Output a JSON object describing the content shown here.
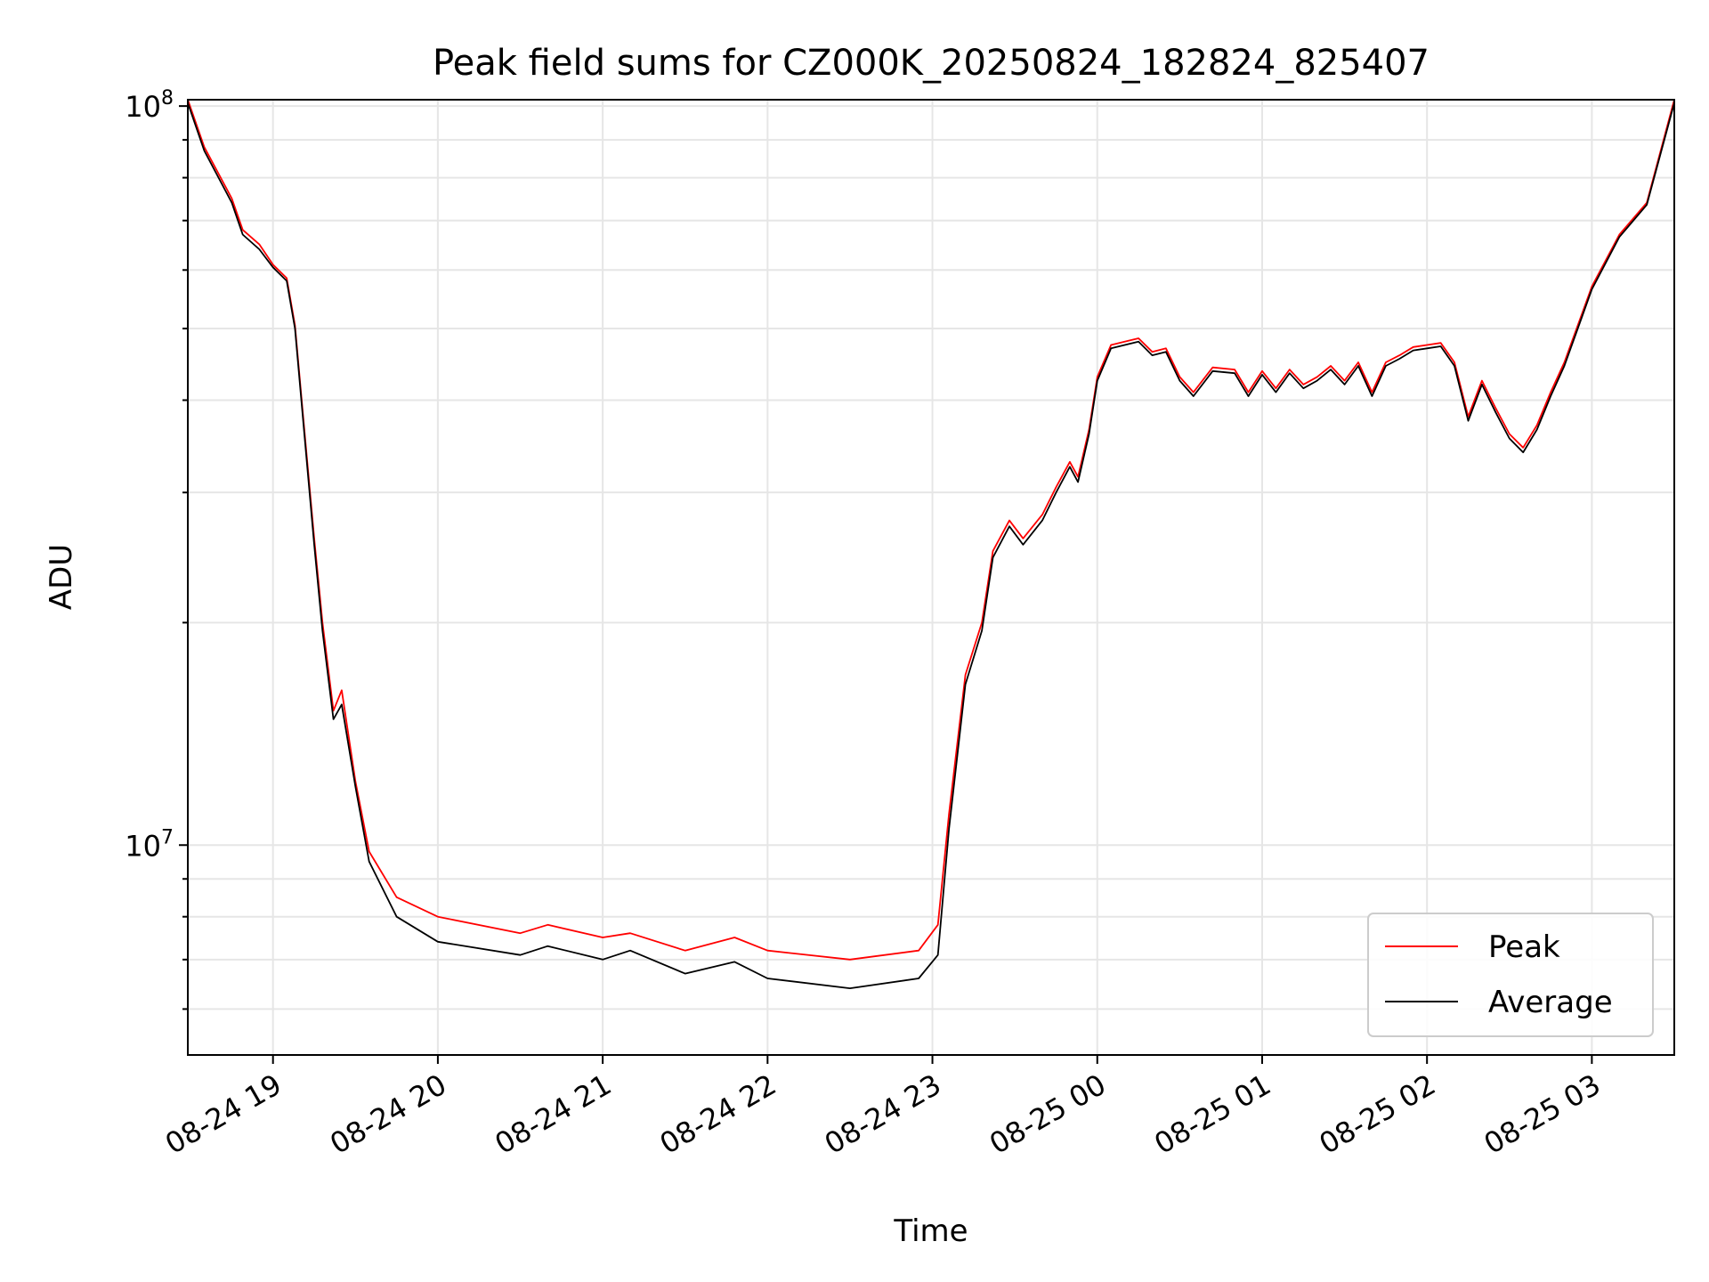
{
  "chart_data": {
    "type": "line",
    "title": "Peak field sums for CZ000K_20250824_182824_825407",
    "xlabel": "Time",
    "ylabel": "ADU",
    "yscale": "log",
    "xlim": [
      "2025-08-24 18:29",
      "2025-08-25 03:30"
    ],
    "ylim": [
      5200000,
      102000000
    ],
    "grid": true,
    "legend_position": "lower right",
    "x_ticks": [
      {
        "t": "2025-08-24 19:00",
        "label": "08-24 19"
      },
      {
        "t": "2025-08-24 20:00",
        "label": "08-24 20"
      },
      {
        "t": "2025-08-24 21:00",
        "label": "08-24 21"
      },
      {
        "t": "2025-08-24 22:00",
        "label": "08-24 22"
      },
      {
        "t": "2025-08-24 23:00",
        "label": "08-24 23"
      },
      {
        "t": "2025-08-25 00:00",
        "label": "08-25 00"
      },
      {
        "t": "2025-08-25 01:00",
        "label": "08-25 01"
      },
      {
        "t": "2025-08-25 02:00",
        "label": "08-25 02"
      },
      {
        "t": "2025-08-25 03:00",
        "label": "08-25 03"
      }
    ],
    "y_ticks": [
      {
        "value": 10000000,
        "label": "10",
        "exp": "7"
      },
      {
        "value": 100000000,
        "label": "10",
        "exp": "8"
      }
    ],
    "series": [
      {
        "name": "Peak",
        "color": "#ff0000",
        "points": [
          [
            "2025-08-24 18:29",
            102000000
          ],
          [
            "2025-08-24 18:35",
            88000000
          ],
          [
            "2025-08-24 18:45",
            75000000
          ],
          [
            "2025-08-24 18:49",
            68000000
          ],
          [
            "2025-08-24 18:55",
            65000000
          ],
          [
            "2025-08-24 19:00",
            61000000
          ],
          [
            "2025-08-24 19:05",
            58500000
          ],
          [
            "2025-08-24 19:08",
            50500000
          ],
          [
            "2025-08-24 19:11",
            38000000
          ],
          [
            "2025-08-24 19:15",
            26000000
          ],
          [
            "2025-08-24 19:18",
            20000000
          ],
          [
            "2025-08-24 19:22",
            15200000
          ],
          [
            "2025-08-24 19:25",
            16200000
          ],
          [
            "2025-08-24 19:30",
            12200000
          ],
          [
            "2025-08-24 19:35",
            9800000
          ],
          [
            "2025-08-24 19:45",
            8500000
          ],
          [
            "2025-08-24 20:00",
            8000000
          ],
          [
            "2025-08-24 20:30",
            7600000
          ],
          [
            "2025-08-24 20:40",
            7800000
          ],
          [
            "2025-08-24 21:00",
            7500000
          ],
          [
            "2025-08-24 21:10",
            7600000
          ],
          [
            "2025-08-24 21:30",
            7200000
          ],
          [
            "2025-08-24 21:48",
            7500000
          ],
          [
            "2025-08-24 22:00",
            7200000
          ],
          [
            "2025-08-24 22:30",
            7000000
          ],
          [
            "2025-08-24 22:55",
            7200000
          ],
          [
            "2025-08-24 23:02",
            7800000
          ],
          [
            "2025-08-24 23:06",
            11000000
          ],
          [
            "2025-08-24 23:12",
            17000000
          ],
          [
            "2025-08-24 23:18",
            20000000
          ],
          [
            "2025-08-24 23:22",
            25000000
          ],
          [
            "2025-08-24 23:28",
            27500000
          ],
          [
            "2025-08-24 23:33",
            26000000
          ],
          [
            "2025-08-24 23:40",
            28000000
          ],
          [
            "2025-08-24 23:45",
            30500000
          ],
          [
            "2025-08-24 23:50",
            33000000
          ],
          [
            "2025-08-24 23:53",
            31500000
          ],
          [
            "2025-08-24 23:57",
            36500000
          ],
          [
            "2025-08-25 00:00",
            43000000
          ],
          [
            "2025-08-25 00:05",
            47500000
          ],
          [
            "2025-08-25 00:15",
            48500000
          ],
          [
            "2025-08-25 00:20",
            46500000
          ],
          [
            "2025-08-25 00:25",
            47000000
          ],
          [
            "2025-08-25 00:30",
            43000000
          ],
          [
            "2025-08-25 00:35",
            41000000
          ],
          [
            "2025-08-25 00:42",
            44300000
          ],
          [
            "2025-08-25 00:50",
            44000000
          ],
          [
            "2025-08-25 00:55",
            41000000
          ],
          [
            "2025-08-25 01:00",
            43800000
          ],
          [
            "2025-08-25 01:05",
            41500000
          ],
          [
            "2025-08-25 01:10",
            44000000
          ],
          [
            "2025-08-25 01:15",
            42000000
          ],
          [
            "2025-08-25 01:20",
            43000000
          ],
          [
            "2025-08-25 01:25",
            44500000
          ],
          [
            "2025-08-25 01:30",
            42500000
          ],
          [
            "2025-08-25 01:35",
            45000000
          ],
          [
            "2025-08-25 01:40",
            41000000
          ],
          [
            "2025-08-25 01:45",
            45000000
          ],
          [
            "2025-08-25 01:50",
            46000000
          ],
          [
            "2025-08-25 01:55",
            47200000
          ],
          [
            "2025-08-25 02:00",
            47500000
          ],
          [
            "2025-08-25 02:05",
            47800000
          ],
          [
            "2025-08-25 02:10",
            45000000
          ],
          [
            "2025-08-25 02:15",
            38000000
          ],
          [
            "2025-08-25 02:20",
            42500000
          ],
          [
            "2025-08-25 02:25",
            39000000
          ],
          [
            "2025-08-25 02:30",
            36000000
          ],
          [
            "2025-08-25 02:35",
            34500000
          ],
          [
            "2025-08-25 02:40",
            37000000
          ],
          [
            "2025-08-25 02:45",
            41000000
          ],
          [
            "2025-08-25 02:50",
            45000000
          ],
          [
            "2025-08-25 03:00",
            57000000
          ],
          [
            "2025-08-25 03:10",
            67000000
          ],
          [
            "2025-08-25 03:20",
            74000000
          ],
          [
            "2025-08-25 03:30",
            102000000
          ]
        ]
      },
      {
        "name": "Average",
        "color": "#000000",
        "points": [
          [
            "2025-08-24 18:29",
            101000000
          ],
          [
            "2025-08-24 18:35",
            87000000
          ],
          [
            "2025-08-24 18:45",
            74000000
          ],
          [
            "2025-08-24 18:49",
            67000000
          ],
          [
            "2025-08-24 18:55",
            64000000
          ],
          [
            "2025-08-24 19:00",
            60500000
          ],
          [
            "2025-08-24 19:05",
            58000000
          ],
          [
            "2025-08-24 19:08",
            50000000
          ],
          [
            "2025-08-24 19:11",
            37500000
          ],
          [
            "2025-08-24 19:15",
            25500000
          ],
          [
            "2025-08-24 19:18",
            19500000
          ],
          [
            "2025-08-24 19:22",
            14800000
          ],
          [
            "2025-08-24 19:25",
            15500000
          ],
          [
            "2025-08-24 19:30",
            12000000
          ],
          [
            "2025-08-24 19:35",
            9500000
          ],
          [
            "2025-08-24 19:45",
            8000000
          ],
          [
            "2025-08-24 20:00",
            7400000
          ],
          [
            "2025-08-24 20:30",
            7100000
          ],
          [
            "2025-08-24 20:40",
            7300000
          ],
          [
            "2025-08-24 21:00",
            7000000
          ],
          [
            "2025-08-24 21:10",
            7200000
          ],
          [
            "2025-08-24 21:30",
            6700000
          ],
          [
            "2025-08-24 21:48",
            6950000
          ],
          [
            "2025-08-24 22:00",
            6600000
          ],
          [
            "2025-08-24 22:30",
            6400000
          ],
          [
            "2025-08-24 22:55",
            6600000
          ],
          [
            "2025-08-24 23:02",
            7100000
          ],
          [
            "2025-08-24 23:06",
            10500000
          ],
          [
            "2025-08-24 23:12",
            16500000
          ],
          [
            "2025-08-24 23:18",
            19500000
          ],
          [
            "2025-08-24 23:22",
            24500000
          ],
          [
            "2025-08-24 23:28",
            27000000
          ],
          [
            "2025-08-24 23:33",
            25500000
          ],
          [
            "2025-08-24 23:40",
            27500000
          ],
          [
            "2025-08-24 23:45",
            30000000
          ],
          [
            "2025-08-24 23:50",
            32500000
          ],
          [
            "2025-08-24 23:53",
            31000000
          ],
          [
            "2025-08-24 23:57",
            36000000
          ],
          [
            "2025-08-25 00:00",
            42500000
          ],
          [
            "2025-08-25 00:05",
            47000000
          ],
          [
            "2025-08-25 00:15",
            48000000
          ],
          [
            "2025-08-25 00:20",
            46000000
          ],
          [
            "2025-08-25 00:25",
            46500000
          ],
          [
            "2025-08-25 00:30",
            42500000
          ],
          [
            "2025-08-25 00:35",
            40500000
          ],
          [
            "2025-08-25 00:42",
            43800000
          ],
          [
            "2025-08-25 00:50",
            43500000
          ],
          [
            "2025-08-25 00:55",
            40500000
          ],
          [
            "2025-08-25 01:00",
            43300000
          ],
          [
            "2025-08-25 01:05",
            41000000
          ],
          [
            "2025-08-25 01:10",
            43500000
          ],
          [
            "2025-08-25 01:15",
            41500000
          ],
          [
            "2025-08-25 01:20",
            42500000
          ],
          [
            "2025-08-25 01:25",
            44000000
          ],
          [
            "2025-08-25 01:30",
            42000000
          ],
          [
            "2025-08-25 01:35",
            44500000
          ],
          [
            "2025-08-25 01:40",
            40500000
          ],
          [
            "2025-08-25 01:45",
            44500000
          ],
          [
            "2025-08-25 01:50",
            45500000
          ],
          [
            "2025-08-25 01:55",
            46700000
          ],
          [
            "2025-08-25 02:00",
            47000000
          ],
          [
            "2025-08-25 02:05",
            47300000
          ],
          [
            "2025-08-25 02:10",
            44500000
          ],
          [
            "2025-08-25 02:15",
            37500000
          ],
          [
            "2025-08-25 02:20",
            42000000
          ],
          [
            "2025-08-25 02:25",
            38500000
          ],
          [
            "2025-08-25 02:30",
            35500000
          ],
          [
            "2025-08-25 02:35",
            34000000
          ],
          [
            "2025-08-25 02:40",
            36500000
          ],
          [
            "2025-08-25 02:45",
            40500000
          ],
          [
            "2025-08-25 02:50",
            44500000
          ],
          [
            "2025-08-25 03:00",
            56500000
          ],
          [
            "2025-08-25 03:10",
            66500000
          ],
          [
            "2025-08-25 03:20",
            73500000
          ],
          [
            "2025-08-25 03:30",
            101000000
          ]
        ]
      }
    ]
  }
}
